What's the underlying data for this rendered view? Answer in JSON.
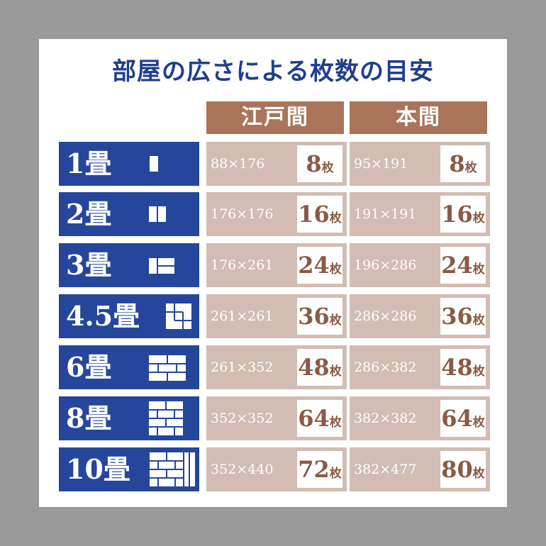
{
  "title": "部屋の広さによる枚数の目安",
  "columns": {
    "edoma": "江戸間",
    "honma": "本間"
  },
  "unit": "枚",
  "rows": [
    {
      "label": "1畳",
      "edoma_size": "88×176",
      "edoma_count": "8",
      "honma_size": "95×191",
      "honma_count": "8"
    },
    {
      "label": "2畳",
      "edoma_size": "176×176",
      "edoma_count": "16",
      "honma_size": "191×191",
      "honma_count": "16"
    },
    {
      "label": "3畳",
      "edoma_size": "176×261",
      "edoma_count": "24",
      "honma_size": "196×286",
      "honma_count": "24"
    },
    {
      "label": "4.5畳",
      "edoma_size": "261×261",
      "edoma_count": "36",
      "honma_size": "286×286",
      "honma_count": "36"
    },
    {
      "label": "6畳",
      "edoma_size": "261×352",
      "edoma_count": "48",
      "honma_size": "286×382",
      "honma_count": "48"
    },
    {
      "label": "8畳",
      "edoma_size": "352×352",
      "edoma_count": "64",
      "honma_size": "382×382",
      "honma_count": "64"
    },
    {
      "label": "10畳",
      "edoma_size": "352×440",
      "edoma_count": "72",
      "honma_size": "382×477",
      "honma_count": "80"
    }
  ],
  "colors": {
    "navy": "#25469a",
    "title": "#1f3f8c",
    "brown": "#a9755a",
    "cell": "#d2bcb3",
    "count_text": "#8a5a44"
  },
  "icons": [
    "tatami-layout-1-icon",
    "tatami-layout-2-icon",
    "tatami-layout-3-icon",
    "tatami-layout-4-5-icon",
    "tatami-layout-6-icon",
    "tatami-layout-8-icon",
    "tatami-layout-10-icon"
  ]
}
